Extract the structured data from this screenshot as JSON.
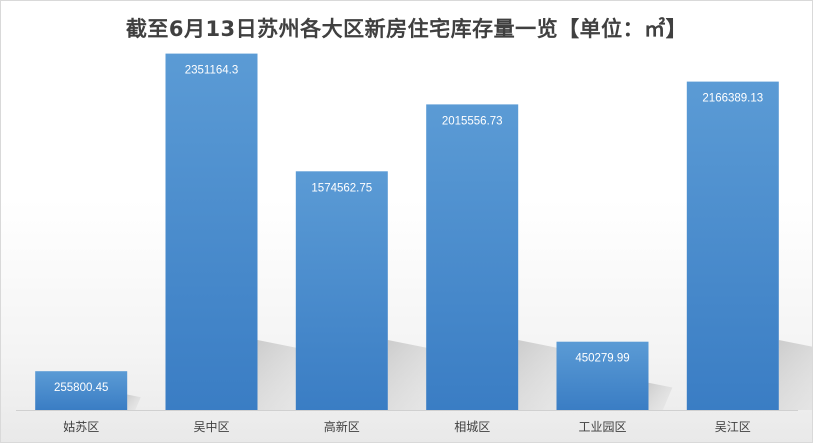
{
  "chart_data": {
    "type": "bar",
    "title": "截至6月13日苏州各大区新房住宅库存量一览【单位：㎡】",
    "categories": [
      "姑苏区",
      "吴中区",
      "高新区",
      "相城区",
      "工业园区",
      "吴江区"
    ],
    "values": [
      255800.45,
      2351164.3,
      1574562.75,
      2015556.73,
      450279.99,
      2166389.13
    ],
    "value_labels": [
      "255800.45",
      "2351164.3",
      "1574562.75",
      "2015556.73",
      "450279.99",
      "2166389.13"
    ],
    "xlabel": "",
    "ylabel": "",
    "ylim": [
      0,
      2500000
    ],
    "grid": false,
    "legend": "none",
    "colors": {
      "bar_top": "#5b9bd5",
      "bar_bottom": "#3a7dc4",
      "label_text": "#ffffff",
      "axis_text": "#404040"
    }
  }
}
